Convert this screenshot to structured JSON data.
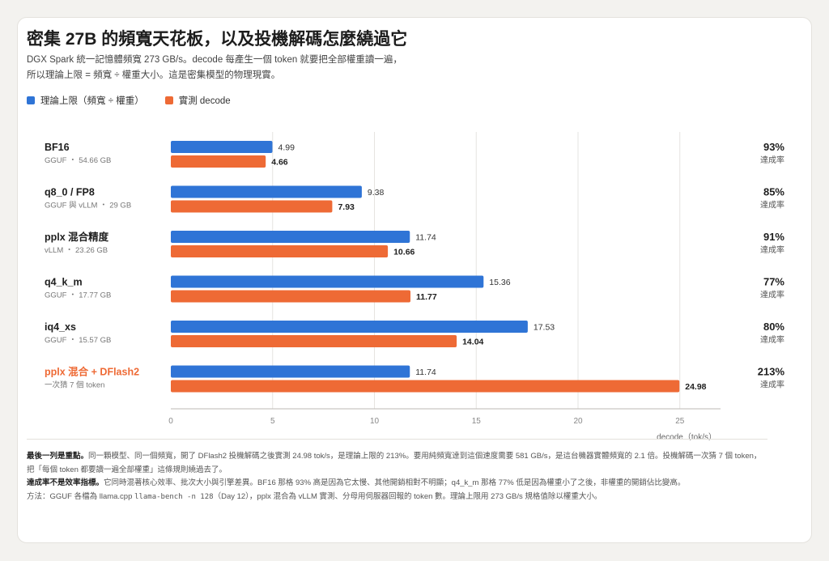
{
  "title": "密集 27B 的頻寬天花板，以及投機解碼怎麼繞過它",
  "subtitle_line1": "DGX Spark 統一記憶體頻寬 273 GB/s。decode 每產生一個 token 就要把全部權重讀一遍，",
  "subtitle_line2": "所以理論上限 = 頻寬 ÷ 權重大小。這是密集模型的物理現實。",
  "colors": {
    "theory": "#2f74d6",
    "measured": "#ee6a35",
    "highlight": "#ee6a35"
  },
  "chart_data": {
    "type": "bar",
    "orientation": "horizontal",
    "categories": [
      "BF16",
      "q8_0 / FP8",
      "pplx 混合精度",
      "q4_k_m",
      "iq4_xs",
      "pplx 混合 + DFlash2"
    ],
    "category_sublabels": [
      "GGUF ・ 54.66 GB",
      "GGUF 與 vLLM ・ 29 GB",
      "vLLM ・ 23.26 GB",
      "GGUF ・ 17.77 GB",
      "GGUF ・ 15.57 GB",
      "一次猜 7 個 token"
    ],
    "highlight_index": 5,
    "series": [
      {
        "name": "理論上限（頻寬 ÷ 權重）",
        "values": [
          4.99,
          9.38,
          11.74,
          15.36,
          17.53,
          11.74
        ],
        "labels": [
          "4.99",
          "9.38",
          "11.74",
          "15.36",
          "17.53",
          "11.74"
        ]
      },
      {
        "name": "實測 decode",
        "values": [
          4.66,
          7.93,
          10.66,
          11.77,
          14.04,
          24.98
        ],
        "labels": [
          "4.66",
          "7.93",
          "10.66",
          "11.77",
          "14.04",
          "24.98"
        ]
      }
    ],
    "ratios": [
      "93%",
      "85%",
      "91%",
      "77%",
      "80%",
      "213%"
    ],
    "ratio_label": "達成率",
    "xlim": [
      0,
      27
    ],
    "xticks": [
      0,
      5,
      10,
      15,
      20,
      25
    ],
    "xlabel": "decode（tok/s）",
    "grid": true,
    "legend": "top-left"
  },
  "footer": {
    "p1_bold": "最後一列是重點。",
    "p1_text": "同一顆模型、同一個頻寬，開了 DFlash2 投機解碼之後實測 24.98 tok/s，是理論上限的 213%。要用純頻寬達到這個速度需要 581 GB/s，是這台機器實體頻寬的 2.1 倍。投機解碼一次猜 7 個 token，把「每個 token 都要讀一遍全部權重」這條規則繞過去了。",
    "p2_bold": "達成率不是效率指標。",
    "p2_text": "它同時混著核心效率、批次大小與引擎差異。BF16 那格 93% 高是因為它太慢、其他開銷相對不明顯；q4_k_m 那格 77% 低是因為權重小了之後，非權重的開銷佔比變高。",
    "p3_pre": "方法：GGUF 各檔為 llama.cpp ",
    "p3_code": "llama-bench -n 128",
    "p3_post": "（Day 12），pplx 混合為 vLLM 實測、分母用伺服器回報的 token 數。理論上限用 273 GB/s 規格值除以權重大小。"
  }
}
